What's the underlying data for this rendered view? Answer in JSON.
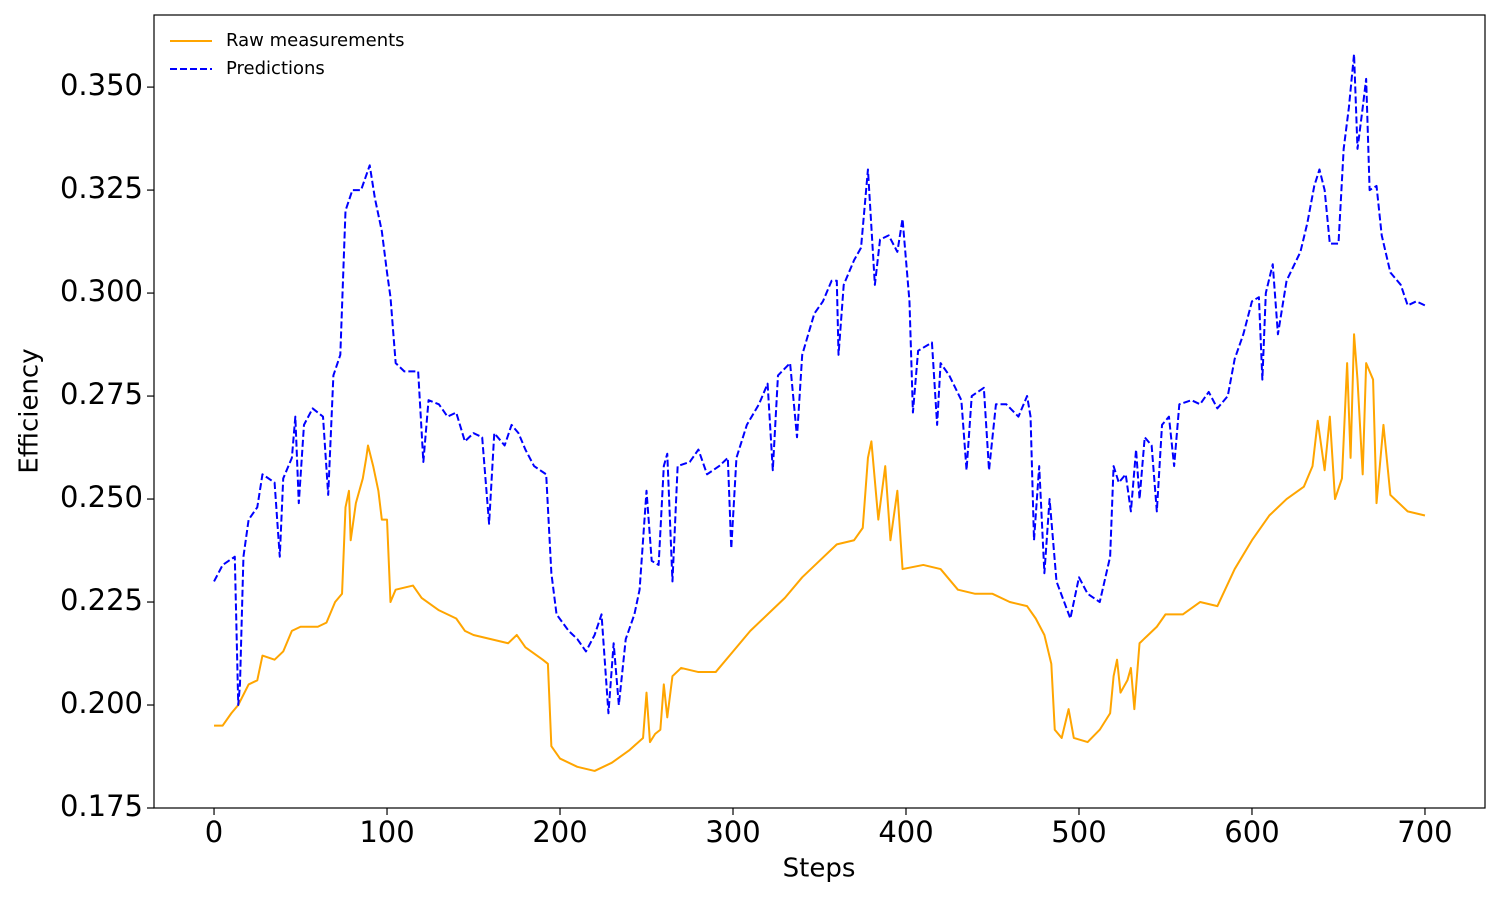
{
  "chart_data": {
    "type": "line",
    "x_label": "Steps",
    "y_label": "Efficiency",
    "xlim": [
      -34.7,
      734.7
    ],
    "ylim": [
      0.175,
      0.3675
    ],
    "xticks": [
      0,
      100,
      200,
      300,
      400,
      500,
      600,
      700
    ],
    "yticks": [
      0.175,
      {
        "value": 0.2,
        "label": "0.200"
      },
      0.225,
      {
        "value": 0.25,
        "label": "0.250"
      },
      0.275,
      {
        "value": 0.3,
        "label": "0.300"
      },
      0.325,
      {
        "value": 0.35,
        "label": "0.350"
      }
    ],
    "legend": "upper left",
    "series": [
      {
        "name": "Raw measurements",
        "color": "#ffa500",
        "linestyle": "solid",
        "x": [
          0,
          5,
          10,
          14,
          20,
          25,
          28,
          35,
          40,
          45,
          50,
          60,
          65,
          70,
          74,
          76,
          78,
          79,
          82,
          86,
          88,
          89,
          92,
          95,
          97,
          100,
          102,
          105,
          115,
          120,
          130,
          140,
          145,
          150,
          160,
          170,
          175,
          180,
          190,
          193,
          195,
          200,
          210,
          220,
          230,
          240,
          248,
          250,
          252,
          255,
          258,
          260,
          262,
          265,
          270,
          280,
          290,
          300,
          310,
          320,
          330,
          340,
          350,
          360,
          370,
          375,
          378,
          380,
          384,
          388,
          391,
          395,
          398,
          410,
          420,
          430,
          440,
          450,
          460,
          470,
          475,
          480,
          484,
          486,
          490,
          494,
          497,
          505,
          512,
          518,
          520,
          522,
          524,
          528,
          530,
          532,
          535,
          540,
          545,
          550,
          560,
          570,
          580,
          590,
          600,
          610,
          620,
          630,
          635,
          638,
          642,
          645,
          648,
          652,
          655,
          657,
          659,
          661,
          664,
          666,
          670,
          672,
          676,
          680,
          690,
          700
        ],
        "values": [
          0.195,
          0.195,
          0.198,
          0.2,
          0.205,
          0.206,
          0.212,
          0.211,
          0.213,
          0.218,
          0.219,
          0.219,
          0.22,
          0.225,
          0.227,
          0.248,
          0.252,
          0.24,
          0.249,
          0.255,
          0.26,
          0.263,
          0.258,
          0.252,
          0.245,
          0.245,
          0.225,
          0.228,
          0.229,
          0.226,
          0.223,
          0.221,
          0.218,
          0.217,
          0.216,
          0.215,
          0.217,
          0.214,
          0.211,
          0.21,
          0.19,
          0.187,
          0.185,
          0.184,
          0.186,
          0.189,
          0.192,
          0.203,
          0.191,
          0.193,
          0.194,
          0.205,
          0.197,
          0.207,
          0.209,
          0.208,
          0.208,
          0.213,
          0.218,
          0.222,
          0.226,
          0.231,
          0.235,
          0.239,
          0.24,
          0.243,
          0.26,
          0.264,
          0.245,
          0.258,
          0.24,
          0.252,
          0.233,
          0.234,
          0.233,
          0.228,
          0.227,
          0.227,
          0.225,
          0.224,
          0.221,
          0.217,
          0.21,
          0.194,
          0.192,
          0.199,
          0.192,
          0.191,
          0.194,
          0.198,
          0.207,
          0.211,
          0.203,
          0.206,
          0.209,
          0.199,
          0.215,
          0.217,
          0.219,
          0.222,
          0.222,
          0.225,
          0.224,
          0.233,
          0.24,
          0.246,
          0.25,
          0.253,
          0.258,
          0.269,
          0.257,
          0.27,
          0.25,
          0.255,
          0.283,
          0.26,
          0.29,
          0.279,
          0.256,
          0.283,
          0.279,
          0.249,
          0.268,
          0.251,
          0.247,
          0.246
        ]
      },
      {
        "name": "Predictions",
        "color": "#0000ff",
        "linestyle": "dashed",
        "x": [
          0,
          5,
          12,
          14,
          15,
          17,
          20,
          25,
          28,
          35,
          38,
          40,
          45,
          47,
          49,
          52,
          57,
          63,
          66,
          69,
          73,
          76,
          80,
          85,
          90,
          93,
          97,
          100,
          102,
          105,
          110,
          118,
          121,
          124,
          130,
          135,
          140,
          145,
          150,
          155,
          159,
          162,
          168,
          172,
          176,
          180,
          185,
          192,
          195,
          198,
          205,
          210,
          215,
          220,
          224,
          228,
          231,
          234,
          238,
          243,
          246,
          250,
          253,
          257,
          260,
          262,
          265,
          268,
          275,
          280,
          285,
          292,
          297,
          299,
          302,
          308,
          315,
          320,
          323,
          326,
          333,
          337,
          340,
          347,
          352,
          357,
          360,
          361,
          364,
          370,
          374,
          378,
          382,
          385,
          390,
          395,
          398,
          402,
          404,
          407,
          415,
          418,
          420,
          425,
          432,
          435,
          438,
          445,
          448,
          452,
          458,
          465,
          470,
          472,
          474,
          477,
          480,
          483,
          487,
          495,
          500,
          505,
          512,
          518,
          520,
          523,
          527,
          530,
          533,
          535,
          538,
          542,
          545,
          548,
          552,
          555,
          558,
          565,
          570,
          575,
          580,
          586,
          590,
          595,
          600,
          604,
          606,
          608,
          612,
          615,
          620,
          628,
          632,
          636,
          639,
          642,
          645,
          650,
          653,
          656,
          659,
          661,
          664,
          666,
          668,
          672,
          675,
          680,
          686,
          690,
          695,
          700
        ],
        "values": [
          0.23,
          0.234,
          0.236,
          0.2,
          0.205,
          0.236,
          0.245,
          0.248,
          0.256,
          0.254,
          0.236,
          0.255,
          0.26,
          0.27,
          0.249,
          0.268,
          0.272,
          0.27,
          0.251,
          0.28,
          0.285,
          0.32,
          0.325,
          0.325,
          0.331,
          0.323,
          0.315,
          0.305,
          0.299,
          0.283,
          0.281,
          0.281,
          0.259,
          0.274,
          0.273,
          0.27,
          0.271,
          0.264,
          0.266,
          0.265,
          0.244,
          0.266,
          0.263,
          0.268,
          0.266,
          0.262,
          0.258,
          0.256,
          0.232,
          0.222,
          0.218,
          0.216,
          0.213,
          0.217,
          0.222,
          0.198,
          0.215,
          0.2,
          0.216,
          0.222,
          0.228,
          0.252,
          0.235,
          0.234,
          0.258,
          0.261,
          0.23,
          0.258,
          0.259,
          0.262,
          0.256,
          0.258,
          0.26,
          0.238,
          0.26,
          0.268,
          0.273,
          0.278,
          0.257,
          0.28,
          0.283,
          0.265,
          0.285,
          0.295,
          0.298,
          0.303,
          0.303,
          0.285,
          0.302,
          0.308,
          0.311,
          0.33,
          0.302,
          0.313,
          0.314,
          0.31,
          0.318,
          0.298,
          0.271,
          0.286,
          0.288,
          0.268,
          0.283,
          0.28,
          0.274,
          0.257,
          0.275,
          0.277,
          0.257,
          0.273,
          0.273,
          0.27,
          0.275,
          0.27,
          0.24,
          0.258,
          0.232,
          0.25,
          0.23,
          0.221,
          0.231,
          0.227,
          0.225,
          0.236,
          0.258,
          0.254,
          0.256,
          0.247,
          0.262,
          0.25,
          0.265,
          0.263,
          0.247,
          0.268,
          0.27,
          0.258,
          0.273,
          0.274,
          0.273,
          0.276,
          0.272,
          0.275,
          0.284,
          0.29,
          0.298,
          0.299,
          0.279,
          0.3,
          0.307,
          0.29,
          0.303,
          0.31,
          0.317,
          0.326,
          0.33,
          0.325,
          0.312,
          0.312,
          0.335,
          0.345,
          0.358,
          0.335,
          0.345,
          0.352,
          0.325,
          0.326,
          0.314,
          0.305,
          0.302,
          0.297,
          0.298,
          0.297
        ]
      }
    ]
  }
}
